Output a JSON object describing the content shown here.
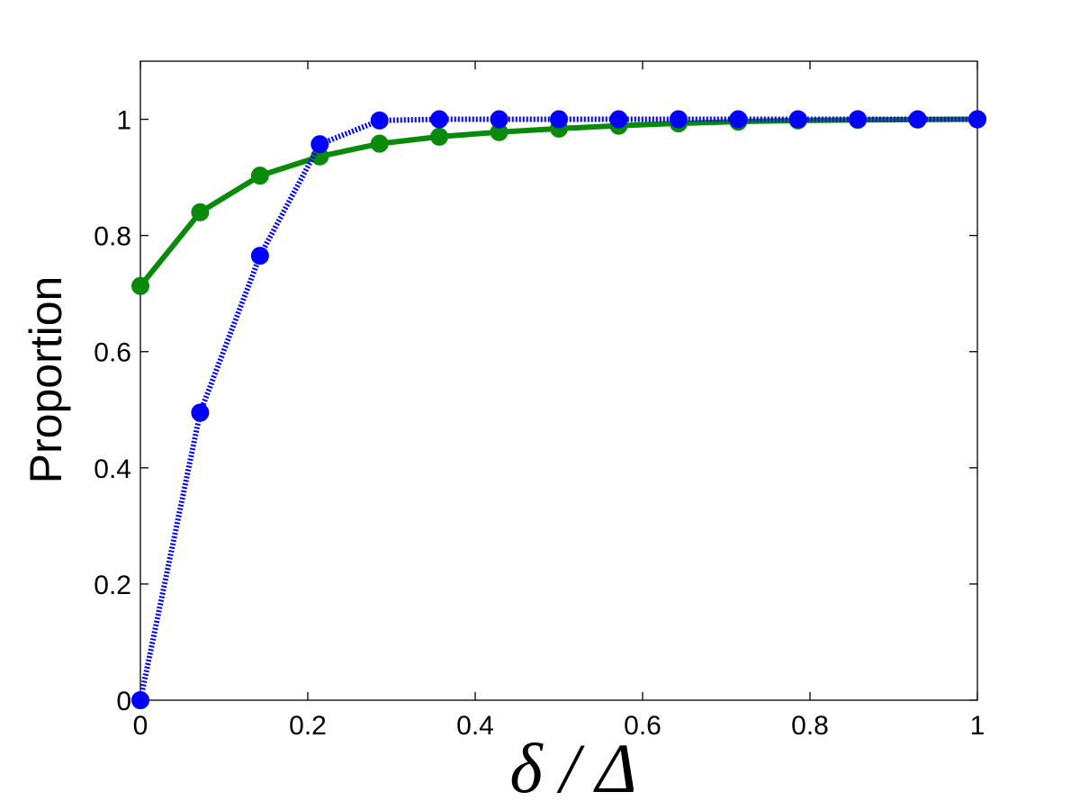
{
  "chart_data": {
    "type": "line",
    "title": "",
    "xlabel": "δ / Δ",
    "ylabel": "Proportion",
    "xlim": [
      0,
      1
    ],
    "ylim": [
      0,
      1.1
    ],
    "xticks": [
      "0",
      "0.2",
      "0.4",
      "0.6",
      "0.8",
      "1"
    ],
    "yticks": [
      "0",
      "0.2",
      "0.4",
      "0.6",
      "0.8",
      "1"
    ],
    "grid": false,
    "legend": "none",
    "x": [
      0,
      0.0714,
      0.1429,
      0.2143,
      0.2857,
      0.3571,
      0.4286,
      0.5,
      0.5714,
      0.6429,
      0.7143,
      0.7857,
      0.8571,
      0.9286,
      1
    ],
    "series": [
      {
        "color": "#0a8a0a",
        "line_style": "solid",
        "values": [
          0.713,
          0.84,
          0.903,
          0.936,
          0.958,
          0.97,
          0.978,
          0.984,
          0.989,
          0.993,
          0.996,
          0.998,
          0.999,
          0.9995,
          1.0
        ]
      },
      {
        "color": "#0000ff",
        "line_style": "dotted",
        "values": [
          0.0,
          0.495,
          0.765,
          0.957,
          0.998,
          1.0,
          1.0,
          1.0,
          1.0,
          1.0,
          1.0,
          1.0,
          1.0,
          1.0,
          1.0
        ]
      }
    ]
  }
}
